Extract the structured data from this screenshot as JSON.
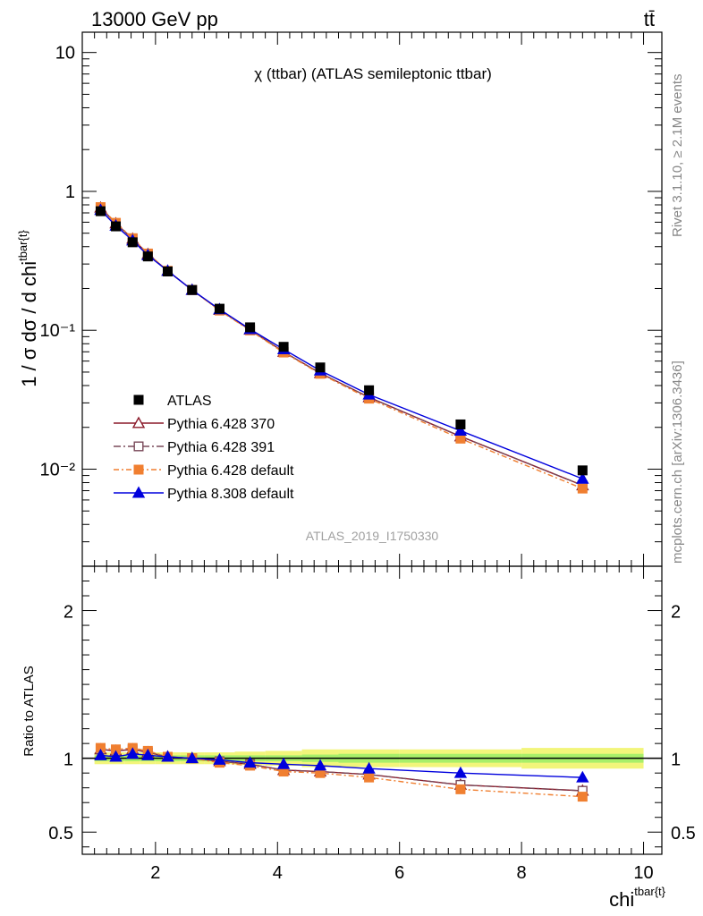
{
  "header": {
    "energy": "13000 GeV pp",
    "process": "tt̄"
  },
  "side": {
    "rivet": "Rivet 3.1.10, ≥ 2.1M events",
    "site": "mcplots.cern.ch [arXiv:1306.3436]"
  },
  "chart_data": {
    "type": "line",
    "title": "χ (ttbar) (ATLAS semileptonic ttbar)",
    "watermark": "ATLAS_2019_I1750330",
    "xlabel": "chi",
    "xlabel_sup": "tbar{t}",
    "ylabel": "1 / σ dσ / d chi",
    "ylabel_sup": "tbar{t}",
    "ratio_ylabel": "Ratio to ATLAS",
    "xlim": [
      0.8,
      10.3
    ],
    "ylim": [
      0.002,
      14
    ],
    "ylog": true,
    "ratio_ylim": [
      0.35,
      2.3
    ],
    "x_ticks": [
      "2",
      "4",
      "6",
      "8",
      "10"
    ],
    "y_ticks": [
      "10",
      "1",
      "10⁻¹",
      "10⁻²"
    ],
    "ratio_ticks": [
      "2",
      "1",
      "0.5"
    ],
    "legend_position": "bottom-left",
    "x": [
      1.1,
      1.35,
      1.625,
      1.875,
      2.2,
      2.6,
      3.05,
      3.55,
      4.1,
      4.7,
      5.5,
      7.0,
      9.0
    ],
    "data": {
      "name": "ATLAS",
      "values": [
        0.72,
        0.56,
        0.43,
        0.34,
        0.265,
        0.195,
        0.143,
        0.105,
        0.076,
        0.054,
        0.037,
        0.021,
        0.0098
      ],
      "band_edges": [
        1.0,
        1.25,
        1.5,
        1.75,
        2.0,
        2.4,
        2.8,
        3.3,
        3.8,
        4.4,
        5.0,
        6.0,
        8.0,
        10.0
      ],
      "band_stat": [
        0.02,
        0.02,
        0.02,
        0.02,
        0.02,
        0.02,
        0.02,
        0.02,
        0.02,
        0.025,
        0.03,
        0.03,
        0.03
      ],
      "band_total": [
        0.04,
        0.04,
        0.04,
        0.04,
        0.04,
        0.04,
        0.04,
        0.045,
        0.05,
        0.06,
        0.06,
        0.06,
        0.07
      ]
    },
    "series": [
      {
        "name": "Pythia 6.428 370",
        "color": "#8b1a2a",
        "marker": "open-triangle",
        "dash": "",
        "ratio": [
          1.06,
          1.05,
          1.06,
          1.04,
          1.01,
          1.0,
          0.98,
          0.96,
          0.92,
          0.91,
          0.89,
          0.82,
          0.78
        ]
      },
      {
        "name": "Pythia 6.428 391",
        "color": "#7a4a5a",
        "marker": "open-square",
        "dash": "8,3,2,3",
        "ratio": [
          1.06,
          1.05,
          1.06,
          1.04,
          1.01,
          1.0,
          0.98,
          0.96,
          0.92,
          0.91,
          0.89,
          0.82,
          0.78
        ]
      },
      {
        "name": "Pythia 6.428 default",
        "color": "#f07f30",
        "marker": "filled-square",
        "dash": "6,3,2,3",
        "ratio": [
          1.07,
          1.06,
          1.07,
          1.05,
          1.01,
          1.0,
          0.97,
          0.95,
          0.91,
          0.9,
          0.87,
          0.79,
          0.74
        ]
      },
      {
        "name": "Pythia 8.308 default",
        "color": "#0000dd",
        "marker": "filled-triangle",
        "dash": "",
        "ratio": [
          1.02,
          1.01,
          1.03,
          1.02,
          1.01,
          1.0,
          0.99,
          0.97,
          0.96,
          0.95,
          0.93,
          0.9,
          0.87
        ]
      }
    ]
  }
}
